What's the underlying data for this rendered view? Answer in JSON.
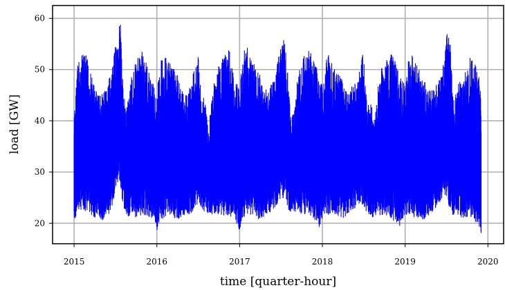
{
  "chart_data": {
    "type": "line",
    "title": "",
    "xlabel": "time [quarter-hour]",
    "ylabel": "load [GW]",
    "x_ticks": [
      "2015",
      "2016",
      "2017",
      "2018",
      "2019",
      "2020"
    ],
    "y_ticks": [
      "20",
      "30",
      "40",
      "50",
      "60"
    ],
    "xlim": [
      2014.74,
      2020.19
    ],
    "ylim": [
      16,
      62.5
    ],
    "grid": true,
    "series": [
      {
        "color": "#0000ff",
        "x": [
          2015.0,
          2015.04,
          2015.08,
          2015.125,
          2015.17,
          2015.21,
          2015.25,
          2015.29,
          2015.33,
          2015.375,
          2015.42,
          2015.46,
          2015.5,
          2015.54,
          2015.56,
          2015.58,
          2015.625,
          2015.67,
          2015.71,
          2015.75,
          2015.79,
          2015.83,
          2015.875,
          2015.92,
          2015.96,
          2016.0,
          2016.04,
          2016.08,
          2016.125,
          2016.17,
          2016.21,
          2016.25,
          2016.29,
          2016.33,
          2016.375,
          2016.42,
          2016.46,
          2016.5,
          2016.54,
          2016.58,
          2016.625,
          2016.67,
          2016.71,
          2016.75,
          2016.79,
          2016.83,
          2016.875,
          2016.92,
          2016.96,
          2017.0,
          2017.04,
          2017.08,
          2017.125,
          2017.17,
          2017.21,
          2017.25,
          2017.29,
          2017.33,
          2017.375,
          2017.42,
          2017.46,
          2017.5,
          2017.54,
          2017.58,
          2017.625,
          2017.67,
          2017.71,
          2017.75,
          2017.79,
          2017.83,
          2017.875,
          2017.92,
          2017.96,
          2018.0,
          2018.04,
          2018.08,
          2018.125,
          2018.17,
          2018.21,
          2018.25,
          2018.29,
          2018.33,
          2018.375,
          2018.42,
          2018.46,
          2018.5,
          2018.54,
          2018.58,
          2018.625,
          2018.67,
          2018.71,
          2018.75,
          2018.79,
          2018.83,
          2018.875,
          2018.92,
          2018.96,
          2019.0,
          2019.04,
          2019.08,
          2019.125,
          2019.17,
          2019.21,
          2019.25,
          2019.29,
          2019.33,
          2019.375,
          2019.42,
          2019.46,
          2019.5,
          2019.54,
          2019.56,
          2019.58,
          2019.625,
          2019.67,
          2019.71,
          2019.75,
          2019.79,
          2019.83,
          2019.875,
          2019.92,
          2019.96,
          2020.0
        ],
        "max": [
          41,
          51.5,
          52.5,
          53.5,
          52,
          49,
          47,
          46,
          45,
          46,
          48,
          50,
          55,
          58,
          60.5,
          50,
          42,
          47,
          50,
          52,
          53,
          54,
          51,
          49,
          47,
          45,
          52,
          54,
          52,
          51,
          50,
          49,
          47,
          46,
          46,
          48,
          51,
          53,
          44,
          45,
          38,
          46,
          49,
          51,
          52,
          53,
          54,
          50,
          48,
          46,
          53,
          55,
          53,
          52,
          50,
          49,
          47,
          46,
          47,
          49,
          52,
          55,
          56,
          50,
          40,
          44,
          50,
          52,
          53,
          54,
          53,
          51,
          49,
          47,
          52,
          53,
          51,
          50,
          49,
          48,
          46,
          47,
          47,
          48,
          51,
          54,
          43,
          45,
          40,
          47,
          50,
          52,
          53,
          53,
          52,
          50,
          48,
          47,
          52,
          53.5,
          52,
          50,
          49,
          47,
          46,
          46,
          47,
          49,
          51,
          57,
          58,
          51,
          44,
          47,
          48,
          50,
          51,
          53,
          52,
          50,
          48,
          40,
          39
        ],
        "min": [
          20,
          22,
          22.5,
          22.5,
          22,
          21.5,
          21,
          21,
          20.5,
          21,
          21.5,
          23,
          27,
          28.5,
          27,
          24,
          22,
          21,
          21.5,
          21,
          21.5,
          21.5,
          21.5,
          21,
          21,
          18.5,
          20.5,
          21,
          21.5,
          21.5,
          21,
          21,
          20.5,
          21,
          21.5,
          22,
          23,
          24,
          23,
          22,
          22,
          21.5,
          22,
          21.5,
          21.5,
          21.5,
          21.5,
          21,
          20,
          18.5,
          21,
          21.5,
          21.5,
          21.5,
          21,
          20.5,
          21,
          21.5,
          22,
          22.5,
          24,
          25,
          24.5,
          22.5,
          22,
          22,
          21.5,
          21.5,
          21.5,
          21.5,
          21,
          20,
          19,
          21,
          21.5,
          21.5,
          21.5,
          21,
          21,
          21,
          21.5,
          22,
          22.5,
          23.5,
          24,
          23,
          22,
          21.5,
          21,
          21.5,
          21.5,
          21.5,
          21.5,
          21,
          20,
          18.5,
          20.5,
          21,
          21.5,
          21.5,
          21,
          20.5,
          20.5,
          21,
          21.5,
          22,
          23,
          24,
          25,
          24,
          22.5,
          22,
          21.5,
          21.5,
          21,
          21,
          21,
          21,
          20.5,
          20,
          18
        ]
      }
    ]
  }
}
